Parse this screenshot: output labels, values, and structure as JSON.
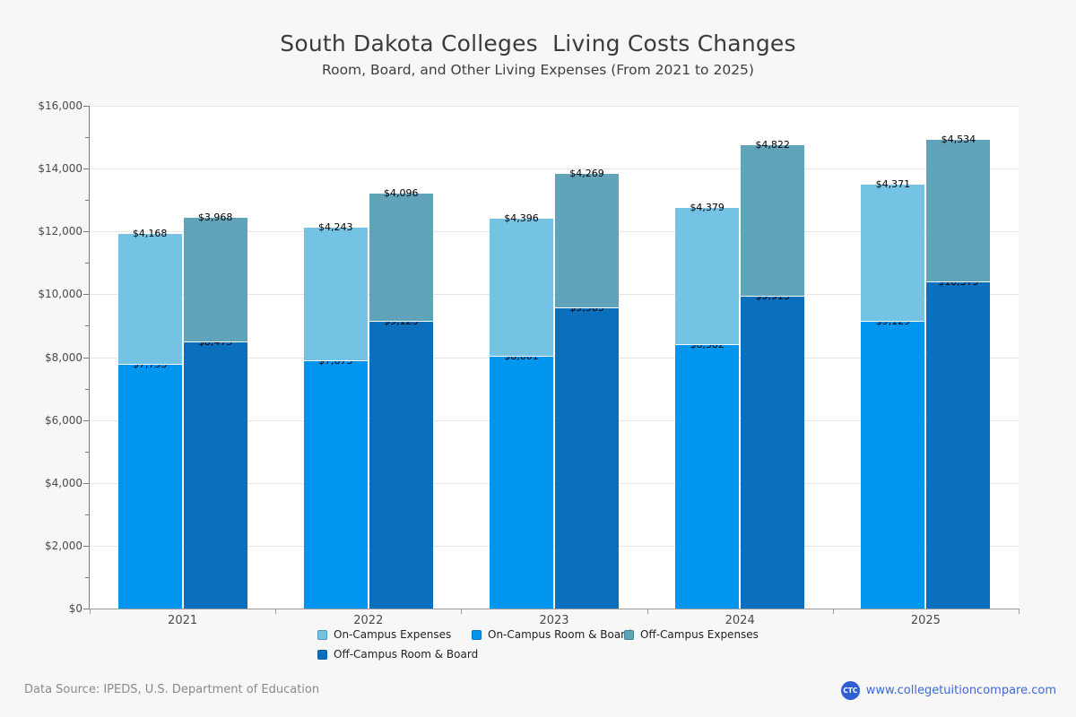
{
  "page": {
    "title": "South Dakota Colleges  Living Costs Changes",
    "subtitle": "Room, Board, and Other Living Expenses (From 2021 to 2025)"
  },
  "chart_data": {
    "type": "bar",
    "stacked": true,
    "title": "South Dakota Colleges  Living Costs Changes",
    "subtitle": "Room, Board, and Other Living Expenses (From 2021 to 2025)",
    "categories": [
      "2021",
      "2022",
      "2023",
      "2024",
      "2025"
    ],
    "series": [
      {
        "name": "On-Campus Room & Board",
        "stack": "on-campus",
        "color": "#0095ef",
        "values": [
          7753,
          7873,
          8001,
          8382,
          9129
        ],
        "labels": [
          "$7,753",
          "$7,873",
          "$8,001",
          "$8,382",
          "$9,129"
        ]
      },
      {
        "name": "On-Campus Expenses",
        "stack": "on-campus",
        "color": "#74c3e4",
        "values": [
          4168,
          4243,
          4396,
          4379,
          4371
        ],
        "labels": [
          "$4,168",
          "$4,243",
          "$4,396",
          "$4,379",
          "$4,371"
        ]
      },
      {
        "name": "Off-Campus Room & Board",
        "stack": "off-campus",
        "color": "#0a6fbd",
        "values": [
          8475,
          9123,
          9565,
          9913,
          10379
        ],
        "labels": [
          "$8,475",
          "$9,123",
          "$9,565",
          "$9,913",
          "$10,379"
        ]
      },
      {
        "name": "Off-Campus Expenses",
        "stack": "off-campus",
        "color": "#61a3b9",
        "values": [
          3968,
          4096,
          4269,
          4822,
          4534
        ],
        "labels": [
          "$3,968",
          "$4,096",
          "$4,269",
          "$4,822",
          "$4,534"
        ]
      }
    ],
    "ylim": [
      0,
      16000
    ],
    "ytick_step": 2000,
    "y_minor_step": 1000,
    "y_ticks": [
      "$0",
      "$2,000",
      "$4,000",
      "$6,000",
      "$8,000",
      "$10,000",
      "$12,000",
      "$14,000",
      "$16,000"
    ],
    "grid": true,
    "legend_position": "bottom-center",
    "legend": [
      {
        "label": "On-Campus Expenses",
        "color": "#74c3e4"
      },
      {
        "label": "On-Campus Room & Board",
        "color": "#0095ef"
      },
      {
        "label": "Off-Campus Expenses",
        "color": "#61a3b9"
      },
      {
        "label": "Off-Campus Room & Board",
        "color": "#0a6fbd"
      }
    ]
  },
  "footer": {
    "source": "Data Source: IPEDS, U.S. Department of Education",
    "logo_text": "CTC",
    "website": "www.collegetuitioncompare.com"
  },
  "colors": {
    "background": "#f7f7f8",
    "plot_background": "#ffffff",
    "gridline": "#e6e6e6",
    "axis": "#7d7d7d",
    "link_blue": "#3e68d8",
    "logo_blue": "#2e5fd3"
  }
}
